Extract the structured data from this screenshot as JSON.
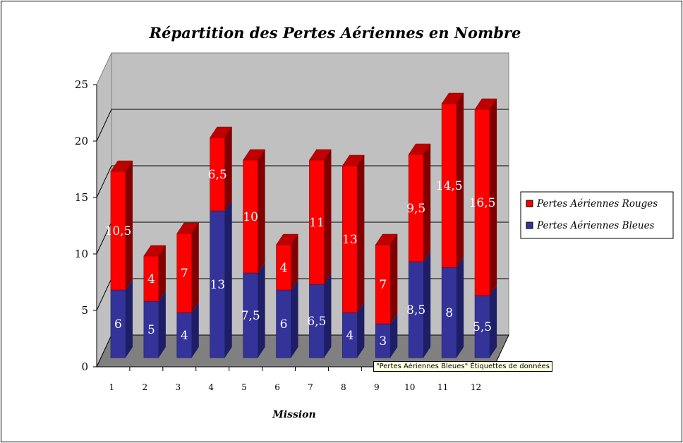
{
  "chart_data": {
    "type": "bar",
    "stacked": true,
    "style": "3d",
    "title": "Répartition des Pertes Aériennes en Nombre",
    "xlabel": "Mission",
    "ylabel": "",
    "ylim": [
      0,
      25
    ],
    "yticks": [
      "0",
      "5",
      "10",
      "15",
      "20",
      "25"
    ],
    "categories": [
      "1",
      "2",
      "3",
      "4",
      "5",
      "6",
      "7",
      "8",
      "9",
      "10",
      "11",
      "12"
    ],
    "series": [
      {
        "name": "Pertes Aériennes Bleues",
        "color": "#333399",
        "values": [
          6,
          5,
          4,
          13,
          7.5,
          6,
          6.5,
          4,
          3,
          8.5,
          8,
          5.5
        ],
        "labels": [
          "6",
          "5",
          "4",
          "13",
          "7,5",
          "6",
          "6,5",
          "4",
          "3",
          "8,5",
          "8",
          "5,5"
        ]
      },
      {
        "name": "Pertes Aériennes Rouges",
        "color": "#ff0000",
        "values": [
          10.5,
          4,
          7,
          6.5,
          10,
          4,
          11,
          13,
          7,
          9.5,
          14.5,
          16.5
        ],
        "labels": [
          "10,5",
          "4",
          "7",
          "6,5",
          "10",
          "4",
          "11",
          "13",
          "7",
          "9,5",
          "14,5",
          "16,5"
        ]
      }
    ],
    "legend": [
      "Pertes Aériennes Rouges",
      "Pertes Aériennes Bleues"
    ],
    "legend_placement": "right",
    "grid": true
  },
  "tooltip": "\"Pertes Aériennes Bleues\" Étiquettes de données"
}
